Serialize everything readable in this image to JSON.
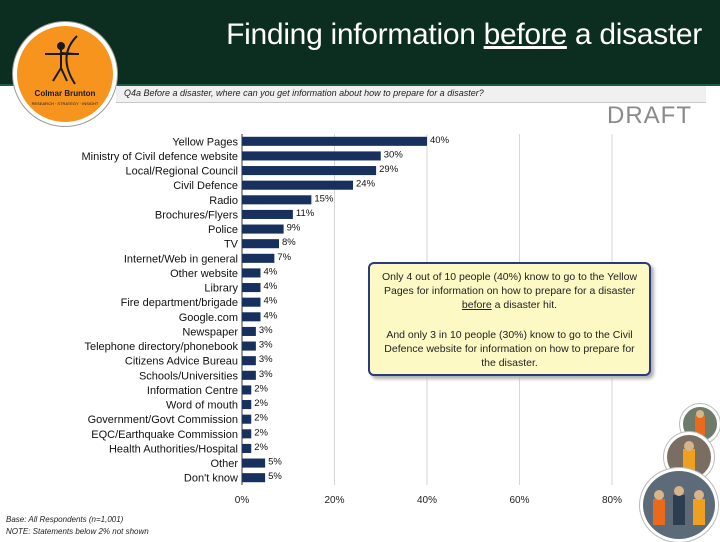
{
  "header": {
    "title_before": "Finding information ",
    "title_underlined": "before",
    "title_after": " a disaster"
  },
  "logo": {
    "name": "Colmar Brunton",
    "tagline": "RESEARCH · STRATEGY · INSIGHT",
    "icon": "archer-icon"
  },
  "question": "Q4a  Before a disaster, where can you get information about how to prepare for a disaster?",
  "draft_label": "DRAFT",
  "callout": {
    "p1_before": "Only 4 out of 10 people (40%) know to go to the Yellow Pages for information on how to prepare for a disaster ",
    "p1_underlined": "before",
    "p1_after": " a disaster hit.",
    "p2": "And only 3 in 10 people (30%) know to go to the Civil Defence website for information on how to prepare for the disaster."
  },
  "footnotes": {
    "base": "Base: All Respondents (n=1,001)",
    "note": "NOTE: Statements below 2% not shown"
  },
  "photos": [
    "photo-worker-1",
    "photo-worker-2",
    "photo-workers-group"
  ],
  "chart_data": {
    "type": "bar",
    "orientation": "horizontal",
    "title": "",
    "xlabel": "",
    "ylabel": "",
    "xlim": [
      0,
      80
    ],
    "grid": true,
    "bar_color": "#17305e",
    "categories": [
      "Yellow Pages",
      "Ministry of Civil defence website",
      "Local/Regional Council",
      "Civil Defence",
      "Radio",
      "Brochures/Flyers",
      "Police",
      "TV",
      "Internet/Web in general",
      "Other website",
      "Library",
      "Fire department/brigade",
      "Google.com",
      "Newspaper",
      "Telephone directory/phonebook",
      "Citizens Advice Bureau",
      "Schools/Universities",
      "Information Centre",
      "Word of mouth",
      "Government/Govt Commission",
      "EQC/Earthquake Commission",
      "Health Authorities/Hospital",
      "Other",
      "Don't know"
    ],
    "values": [
      40,
      30,
      29,
      24,
      15,
      11,
      9,
      8,
      7,
      4,
      4,
      4,
      4,
      3,
      3,
      3,
      3,
      2,
      2,
      2,
      2,
      2,
      5,
      5
    ],
    "value_labels": [
      "40%",
      "30%",
      "29%",
      "24%",
      "15%",
      "11%",
      "9%",
      "8%",
      "7%",
      "4%",
      "4%",
      "4%",
      "4%",
      "3%",
      "3%",
      "3%",
      "3%",
      "2%",
      "2%",
      "2%",
      "2%",
      "2%",
      "5%",
      "5%"
    ],
    "x_ticks": [
      0,
      20,
      40,
      60,
      80
    ],
    "x_tick_labels": [
      "0%",
      "20%",
      "40%",
      "60%",
      "80%"
    ]
  }
}
